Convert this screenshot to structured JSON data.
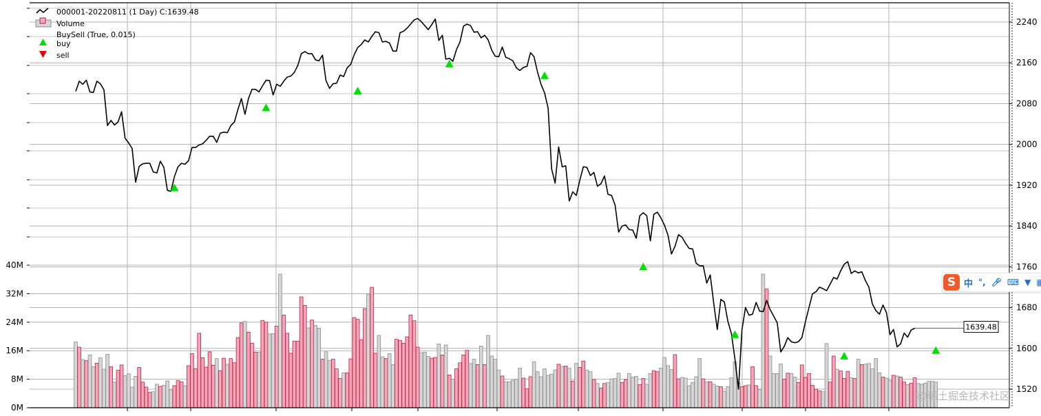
{
  "chart_data": [
    {
      "type": "line",
      "name": "price-panel",
      "series": [
        {
          "name": "000001-20220811 (1 Day) C:1639.48",
          "values": [
            2104,
            2124,
            2118,
            2126,
            2103,
            2102,
            2124,
            2119,
            2107,
            2037,
            2047,
            2038,
            2044,
            2064,
            2012,
            2003,
            1992,
            1926,
            1957,
            1962,
            1963,
            1963,
            1946,
            1944,
            1967,
            1955,
            1910,
            1908,
            1937,
            1956,
            1963,
            1961,
            1968,
            1994,
            1994,
            1999,
            2001,
            2008,
            2016,
            2016,
            2004,
            2022,
            2024,
            2023,
            2037,
            2044,
            2068,
            2090,
            2059,
            2090,
            2108,
            2108,
            2103,
            2115,
            2126,
            2125,
            2097,
            2118,
            2114,
            2124,
            2132,
            2134,
            2141,
            2155,
            2178,
            2182,
            2178,
            2178,
            2166,
            2164,
            2175,
            2125,
            2110,
            2119,
            2120,
            2136,
            2133,
            2150,
            2157,
            2176,
            2190,
            2196,
            2205,
            2201,
            2212,
            2221,
            2219,
            2201,
            2202,
            2199,
            2183,
            2183,
            2219,
            2222,
            2228,
            2236,
            2244,
            2247,
            2241,
            2233,
            2225,
            2235,
            2246,
            2204,
            2214,
            2167,
            2169,
            2163,
            2186,
            2201,
            2232,
            2236,
            2233,
            2220,
            2221,
            2209,
            2214,
            2205,
            2185,
            2173,
            2172,
            2191,
            2171,
            2168,
            2164,
            2150,
            2145,
            2151,
            2153,
            2180,
            2172,
            2142,
            2118,
            2101,
            2071,
            1952,
            1924,
            1995,
            1956,
            1958,
            1889,
            1907,
            1900,
            1930,
            1956,
            1955,
            1939,
            1945,
            1918,
            1923,
            1938,
            1902,
            1900,
            1881,
            1828,
            1840,
            1842,
            1833,
            1832,
            1816,
            1860,
            1866,
            1860,
            1811,
            1863,
            1867,
            1856,
            1842,
            1822,
            1785,
            1800,
            1823,
            1818,
            1806,
            1796,
            1795,
            1767,
            1762,
            1762,
            1728,
            1744,
            1688,
            1637,
            1696,
            1691,
            1653,
            1629,
            1580,
            1520,
            1637,
            1680,
            1665,
            1667,
            1690,
            1673,
            1672,
            1694,
            1676,
            1663,
            1650,
            1593,
            1604,
            1621,
            1613,
            1611,
            1613,
            1621,
            1652,
            1680,
            1707,
            1711,
            1720,
            1717,
            1713,
            1726,
            1739,
            1736,
            1752,
            1765,
            1770,
            1747,
            1752,
            1748,
            1750,
            1733,
            1720,
            1687,
            1674,
            1667,
            1685,
            1670,
            1627,
            1637,
            1603,
            1609,
            1630,
            1622,
            1636,
            1639.48
          ]
        }
      ],
      "buy_markers": [
        {
          "index": 28,
          "value": 1915
        },
        {
          "index": 54,
          "value": 2072
        },
        {
          "index": 80,
          "value": 2105
        },
        {
          "index": 106,
          "value": 2158
        },
        {
          "index": 133,
          "value": 2135
        },
        {
          "index": 161,
          "value": 1760
        },
        {
          "index": 187,
          "value": 1627
        },
        {
          "index": 218,
          "value": 1585
        },
        {
          "index": 244,
          "value": 1596
        }
      ],
      "sell_markers": [],
      "current_value_label": "1639.48",
      "yticks": [
        "1520",
        "1600",
        "1680",
        "1760",
        "1840",
        "1920",
        "2000",
        "2080",
        "2160",
        "2240"
      ],
      "ylim": [
        1510,
        2265
      ],
      "grid": true,
      "legend_position": "top-left",
      "legend": [
        {
          "label": "000001-20220811 (1 Day) C:1639.48",
          "symbol": "line",
          "color": "#000000"
        },
        {
          "label": "Volume",
          "symbol": "box",
          "color": "#f4a7b9"
        },
        {
          "label": "BuySell (True, 0.015)",
          "symbol": "none",
          "color": "#000000"
        },
        {
          "label": "buy",
          "symbol": "triangle-up",
          "color": "#00e000"
        },
        {
          "label": "sell",
          "symbol": "triangle-down",
          "color": "#e00000"
        }
      ]
    },
    {
      "type": "bar",
      "name": "volume-panel",
      "series": [
        {
          "name": "Volume",
          "values": [
            18.5,
            17,
            13.5,
            13.2,
            14.8,
            11.5,
            12.5,
            14,
            10.8,
            15,
            11.5,
            7.2,
            10.5,
            12,
            9,
            9.5,
            5.8,
            8.8,
            11.3,
            7.2,
            5.8,
            4.3,
            4.5,
            6.6,
            6,
            6.3,
            7.5,
            5,
            6.2,
            7.6,
            7.3,
            6.2,
            11.8,
            15.2,
            10.9,
            20.9,
            14,
            11.4,
            15.7,
            11.9,
            13.8,
            10.4,
            13.9,
            12.2,
            13.8,
            12.6,
            19.7,
            23.8,
            24.2,
            21.2,
            18.1,
            15.6,
            15.6,
            24.5,
            24,
            20.7,
            20.8,
            22.9,
            37.5,
            26,
            20.9,
            15.3,
            18.7,
            18.7,
            31.1,
            28.7,
            22.4,
            24.6,
            23.1,
            22.3,
            13.6,
            15.7,
            13.3,
            13.6,
            10.9,
            8.2,
            9.8,
            9.8,
            13.7,
            25.3,
            24.8,
            19.1,
            27.8,
            31.9,
            33.8,
            15.3,
            20.3,
            14.3,
            13.8,
            15.2,
            12.1,
            19.2,
            18.9,
            18.1,
            19.9,
            26,
            24.4,
            17,
            15.4,
            15.6,
            14.4,
            13.9,
            14.1,
            17.9,
            14.8,
            17.6,
            9.2,
            8,
            10.9,
            12.6,
            14.8,
            16.1,
            12.4,
            13.6,
            12.1,
            17.3,
            12.1,
            20.3,
            14.5,
            13.6,
            10.6,
            8.9,
            7.3,
            7.3,
            7.7,
            8,
            11.1,
            8.3,
            5.3,
            8.7,
            12.9,
            10.1,
            8.7,
            10.9,
            9.1,
            9.4,
            10.6,
            12.2,
            11.6,
            11.7,
            11.1,
            7.5,
            12.5,
            11.3,
            13.1,
            10.6,
            10.1,
            7.9,
            6.8,
            5.5,
            6.8,
            7.1,
            8.1,
            8.2,
            9.7,
            7.1,
            7.9,
            9.6,
            8.6,
            8.8,
            6.5,
            8.2,
            6.6,
            9.6,
            10.4,
            10.1,
            11.1,
            14.1,
            11.8,
            10.7,
            14.9,
            8.1,
            8.5,
            8.3,
            6.2,
            7.1,
            8.7,
            13.8,
            8.1,
            7.3,
            7.3,
            6.6,
            6.1,
            5.9,
            4.6,
            5.9,
            8.4,
            12.9,
            7.1,
            5.9,
            6.2,
            6.4,
            11.5,
            6.2,
            5.1,
            37.5,
            33.3,
            14.5,
            9.6,
            9.6,
            12.3,
            8,
            9.7,
            9.6,
            8.6,
            7.1,
            12,
            8.5,
            9.6,
            6.3,
            5.2,
            4.7,
            4.5,
            18,
            7.2,
            14.5,
            10.8,
            10.3,
            8.2,
            10.2,
            8.4,
            8.2,
            13.6,
            12.1,
            12.2,
            12.4,
            10.9,
            13.8,
            9.8,
            8.6,
            8.3,
            7.6,
            9.1,
            8.9,
            8.6,
            7.2,
            6.5,
            6.9,
            8.4,
            6.8,
            6.6,
            6.9,
            7.4,
            7.4,
            7.2
          ]
        }
      ],
      "yticks": [
        "0M",
        "8M",
        "16M",
        "24M",
        "32M",
        "40M"
      ],
      "ylim": [
        0,
        40
      ],
      "colors": {
        "up_fill": "#f4a7b9",
        "up_edge": "#c01e45",
        "down_fill": "#d6d6d6",
        "down_edge": "#8c8c8c"
      }
    }
  ],
  "overlay": {
    "ime_logo": "S",
    "ime_mode": "中",
    "ime_icons": [
      "punct-icon",
      "mic-icon",
      "keyboard-icon",
      "shirt-icon",
      "grid-icon"
    ],
    "watermark": "@稀土掘金技术社区"
  }
}
